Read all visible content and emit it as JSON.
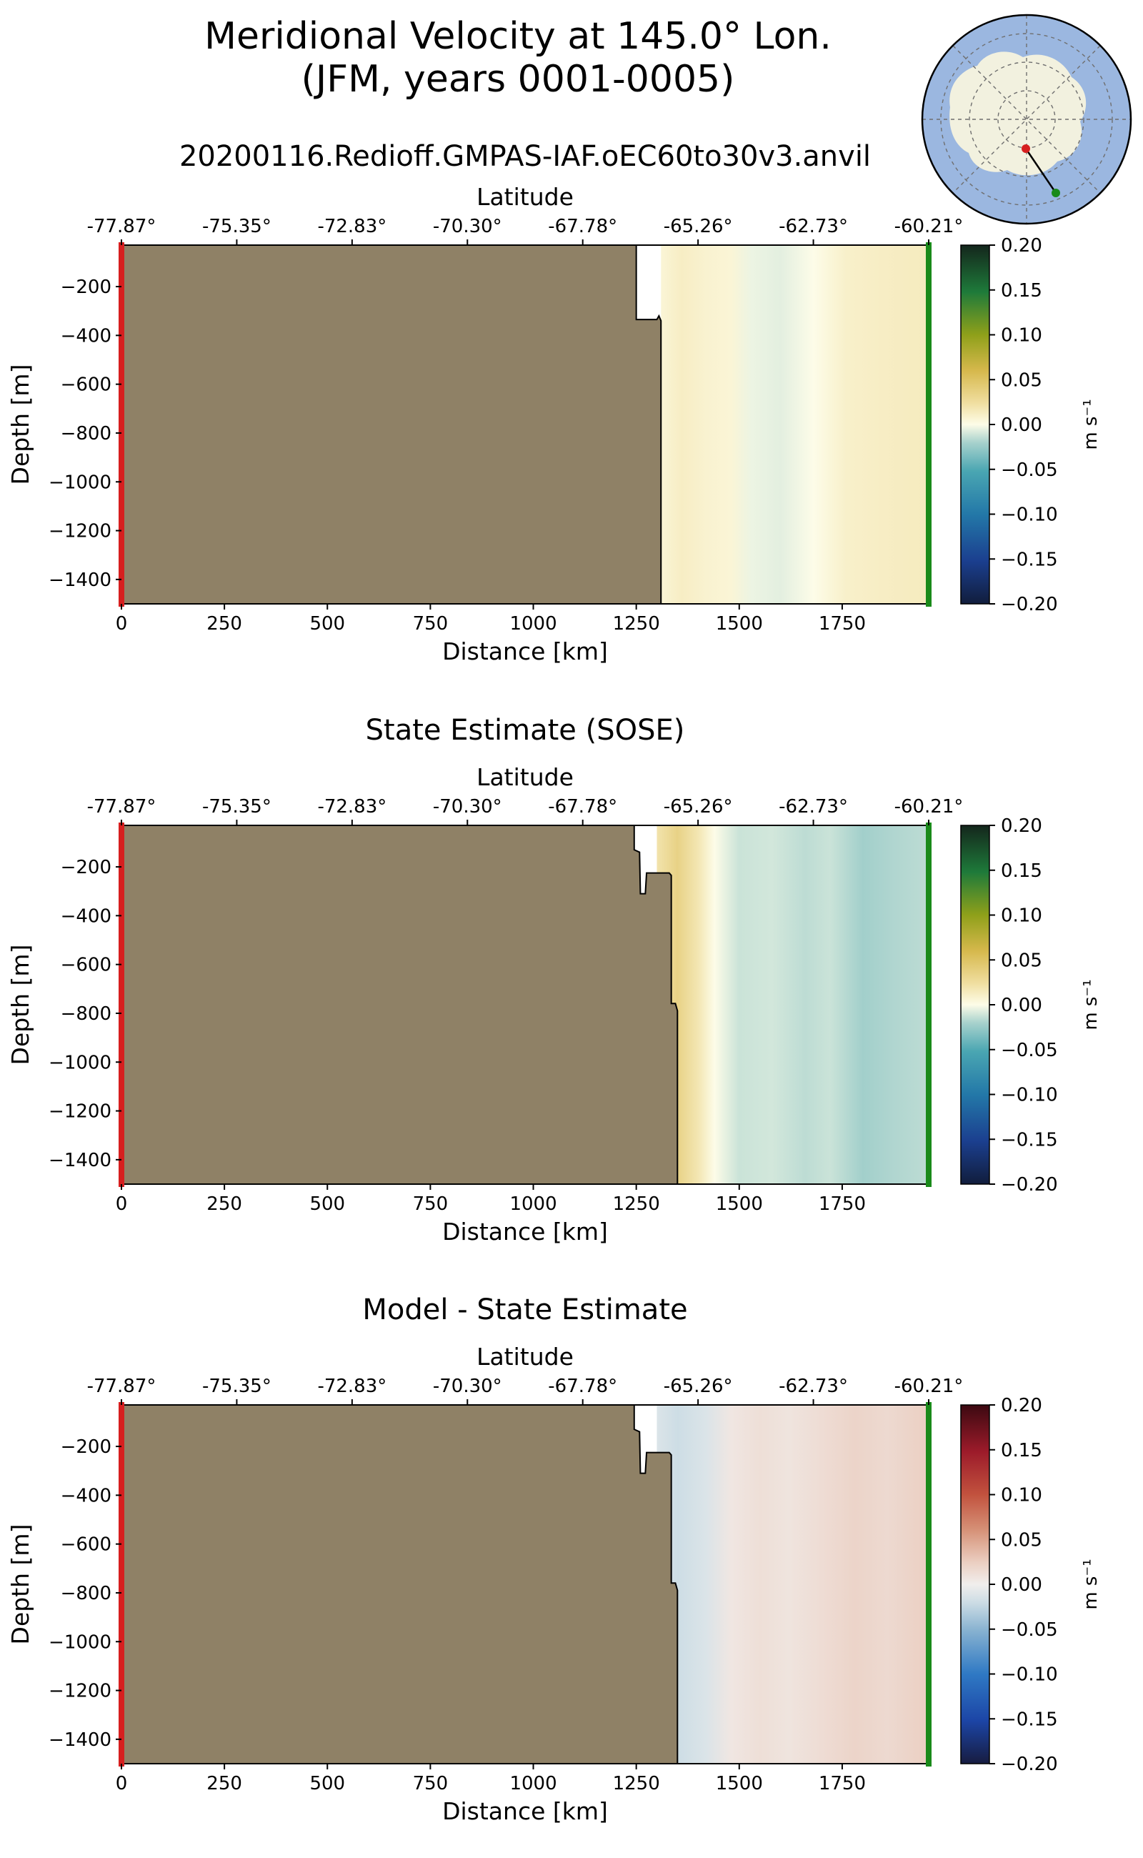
{
  "figure": {
    "title_line1": "Meridional Velocity at 145.0° Lon.",
    "title_line2": "(JFM, years 0001-0005)",
    "run_name": "20200116.Redioff.GMPAS-IAF.oEC60to30v3.anvil"
  },
  "colors": {
    "land": "#8f8166",
    "start_marker": "#d61f1f",
    "end_marker": "#1a8a1a",
    "map_ocean": "#9bb7e0",
    "map_land": "#f2f1df"
  },
  "inset_map": {
    "description_icon": "antarctic-polar-map-icon",
    "transect_start": "red-dot",
    "transect_end": "green-dot"
  },
  "chart_data": [
    {
      "type": "heatmap",
      "id": "model",
      "title": "",
      "xlabel": "Distance [km]",
      "ylabel": "Depth [m]",
      "top_xlabel": "Latitude",
      "xlim": [
        0,
        1960
      ],
      "ylim": [
        -1500,
        -30
      ],
      "x_ticks": [
        0,
        250,
        500,
        750,
        1000,
        1250,
        1500,
        1750
      ],
      "y_ticks": [
        -200,
        -400,
        -600,
        -800,
        -1000,
        -1200,
        -1400
      ],
      "lat_ticks": [
        "-77.87°",
        "-75.35°",
        "-72.83°",
        "-70.30°",
        "-67.78°",
        "-65.26°",
        "-62.73°",
        "-60.21°"
      ],
      "colorbar": {
        "label": "m s⁻¹",
        "range": [
          -0.2,
          0.2
        ],
        "ticks": [
          "0.20",
          "0.15",
          "0.10",
          "0.05",
          "0.00",
          "−0.05",
          "−0.10",
          "−0.15",
          "−0.20"
        ],
        "cmap": "cmocean-delta"
      },
      "land_boundary": [
        [
          1250,
          -30
        ],
        [
          1250,
          -335
        ],
        [
          1300,
          -335
        ],
        [
          1305,
          -320
        ],
        [
          1310,
          -340
        ],
        [
          1310,
          -1500
        ]
      ],
      "field_columns": [
        {
          "x": 1310,
          "value": 0.006
        },
        {
          "x": 1360,
          "value": 0.012
        },
        {
          "x": 1420,
          "value": 0.008
        },
        {
          "x": 1480,
          "value": 0.006
        },
        {
          "x": 1530,
          "value": -0.004
        },
        {
          "x": 1600,
          "value": -0.006
        },
        {
          "x": 1680,
          "value": 0.0
        },
        {
          "x": 1760,
          "value": 0.01
        },
        {
          "x": 1850,
          "value": 0.012
        },
        {
          "x": 1960,
          "value": 0.014
        }
      ]
    },
    {
      "type": "heatmap",
      "id": "sose",
      "title": "State Estimate (SOSE)",
      "xlabel": "Distance [km]",
      "ylabel": "Depth [m]",
      "top_xlabel": "Latitude",
      "xlim": [
        0,
        1960
      ],
      "ylim": [
        -1500,
        -30
      ],
      "x_ticks": [
        0,
        250,
        500,
        750,
        1000,
        1250,
        1500,
        1750
      ],
      "y_ticks": [
        -200,
        -400,
        -600,
        -800,
        -1000,
        -1200,
        -1400
      ],
      "lat_ticks": [
        "-77.87°",
        "-75.35°",
        "-72.83°",
        "-70.30°",
        "-67.78°",
        "-65.26°",
        "-62.73°",
        "-60.21°"
      ],
      "colorbar": {
        "label": "m s⁻¹",
        "range": [
          -0.2,
          0.2
        ],
        "ticks": [
          "0.20",
          "0.15",
          "0.10",
          "0.05",
          "0.00",
          "−0.05",
          "−0.10",
          "−0.15",
          "−0.20"
        ],
        "cmap": "cmocean-delta"
      },
      "land_boundary": [
        [
          1245,
          -30
        ],
        [
          1245,
          -130
        ],
        [
          1258,
          -140
        ],
        [
          1260,
          -310
        ],
        [
          1272,
          -310
        ],
        [
          1275,
          -225
        ],
        [
          1330,
          -225
        ],
        [
          1335,
          -235
        ],
        [
          1335,
          -760
        ],
        [
          1345,
          -760
        ],
        [
          1350,
          -790
        ],
        [
          1350,
          -1500
        ]
      ],
      "field_columns": [
        {
          "x": 1300,
          "value": 0.02
        },
        {
          "x": 1350,
          "value": 0.035
        },
        {
          "x": 1400,
          "value": 0.018
        },
        {
          "x": 1440,
          "value": 0.0
        },
        {
          "x": 1500,
          "value": -0.012
        },
        {
          "x": 1580,
          "value": -0.01
        },
        {
          "x": 1660,
          "value": -0.015
        },
        {
          "x": 1720,
          "value": -0.012
        },
        {
          "x": 1800,
          "value": -0.022
        },
        {
          "x": 1880,
          "value": -0.018
        },
        {
          "x": 1960,
          "value": -0.015
        }
      ]
    },
    {
      "type": "heatmap",
      "id": "difference",
      "title": "Model - State Estimate",
      "xlabel": "Distance [km]",
      "ylabel": "Depth [m]",
      "top_xlabel": "Latitude",
      "xlim": [
        0,
        1960
      ],
      "ylim": [
        -1500,
        -30
      ],
      "x_ticks": [
        0,
        250,
        500,
        750,
        1000,
        1250,
        1500,
        1750
      ],
      "y_ticks": [
        -200,
        -400,
        -600,
        -800,
        -1000,
        -1200,
        -1400
      ],
      "lat_ticks": [
        "-77.87°",
        "-75.35°",
        "-72.83°",
        "-70.30°",
        "-67.78°",
        "-65.26°",
        "-62.73°",
        "-60.21°"
      ],
      "colorbar": {
        "label": "m s⁻¹",
        "range": [
          -0.2,
          0.2
        ],
        "ticks": [
          "0.20",
          "0.15",
          "0.10",
          "0.05",
          "0.00",
          "−0.05",
          "−0.10",
          "−0.15",
          "−0.20"
        ],
        "cmap": "RdBu-balance"
      },
      "land_boundary": [
        [
          1245,
          -30
        ],
        [
          1245,
          -130
        ],
        [
          1258,
          -140
        ],
        [
          1260,
          -310
        ],
        [
          1272,
          -310
        ],
        [
          1275,
          -225
        ],
        [
          1330,
          -225
        ],
        [
          1335,
          -235
        ],
        [
          1335,
          -760
        ],
        [
          1345,
          -760
        ],
        [
          1350,
          -790
        ],
        [
          1350,
          -1500
        ]
      ],
      "field_columns": [
        {
          "x": 1300,
          "value": -0.012
        },
        {
          "x": 1350,
          "value": -0.02
        },
        {
          "x": 1420,
          "value": -0.012
        },
        {
          "x": 1480,
          "value": 0.006
        },
        {
          "x": 1550,
          "value": 0.012
        },
        {
          "x": 1620,
          "value": 0.008
        },
        {
          "x": 1700,
          "value": 0.014
        },
        {
          "x": 1780,
          "value": 0.02
        },
        {
          "x": 1860,
          "value": 0.016
        },
        {
          "x": 1960,
          "value": 0.024
        }
      ]
    }
  ]
}
